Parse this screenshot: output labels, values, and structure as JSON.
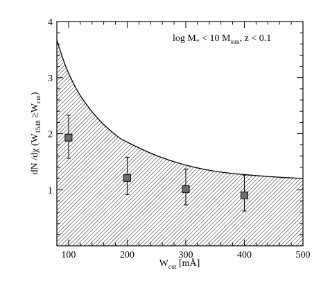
{
  "chart_data": {
    "type": "scatter",
    "annotation": {
      "main": "log M",
      "sub1": "*",
      "mid": " < 10 M",
      "sub2": "sun",
      "tail": ",  z  < 0.1"
    },
    "xlabel": {
      "main": "W",
      "sub": "cut",
      "unit": "  [mÅ]"
    },
    "ylabel": {
      "pre": "dN /dχ  (W",
      "sub1": "1548",
      "mid": " ≥W",
      "sub2": "cut",
      "post": ")"
    },
    "xlim": [
      80,
      500
    ],
    "ylim": [
      0,
      4
    ],
    "xticks": [
      100,
      200,
      300,
      400,
      500
    ],
    "yticks": [
      1,
      2,
      3,
      4
    ],
    "points": [
      {
        "x": 100,
        "y": 1.93,
        "yerr_low": 1.56,
        "yerr_high": 2.33
      },
      {
        "x": 200,
        "y": 1.21,
        "yerr_low": 0.91,
        "yerr_high": 1.58
      },
      {
        "x": 300,
        "y": 1.01,
        "yerr_low": 0.73,
        "yerr_high": 1.37
      },
      {
        "x": 400,
        "y": 0.9,
        "yerr_low": 0.62,
        "yerr_high": 1.26
      }
    ],
    "upper_curve": {
      "x": [
        80,
        90,
        100,
        120,
        150,
        180,
        200,
        250,
        300,
        350,
        400,
        450,
        500
      ],
      "y": [
        3.67,
        3.35,
        3.08,
        2.68,
        2.27,
        1.98,
        1.85,
        1.61,
        1.44,
        1.33,
        1.27,
        1.23,
        1.2
      ]
    },
    "shaded_region": "hatched area below upper curve",
    "marker_color": "#6e6e6e",
    "line_color": "#000000"
  }
}
